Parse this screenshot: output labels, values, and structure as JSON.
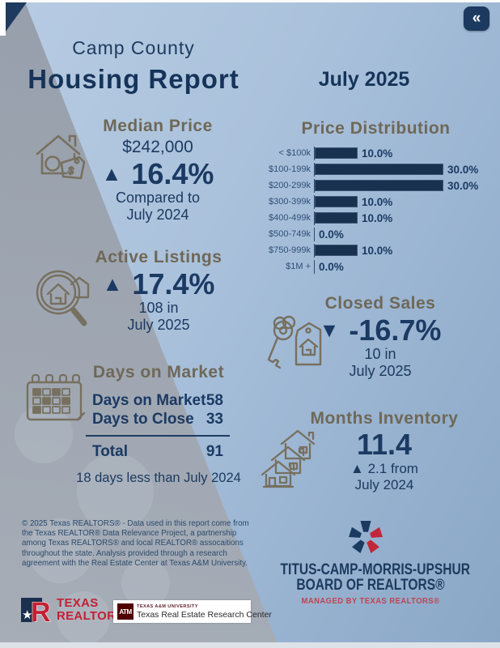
{
  "colors": {
    "navy": "#17345a",
    "bar_navy": "#17314f",
    "olive_title": "#6f6857",
    "brand_red": "#c32033",
    "tcmu_red": "#bf4350",
    "maroon": "#500000"
  },
  "window": {
    "collapse_label": "«"
  },
  "header": {
    "county": "Camp County",
    "title": "Housing Report",
    "period": "July 2025"
  },
  "median_price": {
    "title": "Median Price",
    "value": "$242,000",
    "arrow": "▲",
    "change": "16.4%",
    "compare_line1": "Compared to",
    "compare_line2": "July 2024"
  },
  "chart_data": {
    "type": "bar",
    "orientation": "horizontal",
    "title": "Price Distribution",
    "categories": [
      "< $100k",
      "$100-199k",
      "$200-299k",
      "$300-399k",
      "$400-499k",
      "$500-749k",
      "$750-999k",
      "$1M +"
    ],
    "values": [
      10,
      30,
      30,
      10,
      10,
      0,
      10,
      0
    ],
    "value_labels": [
      "10.0%",
      "30.0%",
      "30.0%",
      "10.0%",
      "10.0%",
      "0.0%",
      "10.0%",
      "0.0%"
    ],
    "xlabel": "",
    "ylabel": "",
    "xlim": [
      0,
      33
    ],
    "unit": "%",
    "grid": false,
    "legend": false
  },
  "active_listings": {
    "title": "Active Listings",
    "arrow": "▲",
    "change": "17.4%",
    "count_line1": "108 in",
    "count_line2": "July 2025"
  },
  "closed_sales": {
    "title": "Closed Sales",
    "arrow": "▼",
    "change": "-16.7%",
    "count_line1": "10 in",
    "count_line2": "July 2025"
  },
  "days_on_market": {
    "title": "Days on Market",
    "rows": [
      {
        "label": "Days on Market",
        "value": "58"
      },
      {
        "label": "Days to Close",
        "value": "33"
      }
    ],
    "total_label": "Total",
    "total_value": "91",
    "note": "18 days less than July 2024"
  },
  "months_inventory": {
    "title": "Months Inventory",
    "value": "11.4",
    "change_line1": "▲ 2.1 from",
    "change_line2": "July 2024"
  },
  "disclaimer": "© 2025 Texas REALTORS® - Data used in this report come from the Texas REALTOR® Data Relevance Project, a partnership among Texas REALTORS® and local REALTOR® assocaitions throughout the state. Analysis provided through a research agreement with the Real Estate Center at Texas A&M University.",
  "tcmu_logo": {
    "line1": "TITUS-CAMP-MORRIS-UPSHUR",
    "line2": "BOARD OF REALTORS®",
    "line3": "MANAGED BY TEXAS REALTORS®"
  },
  "texas_realtors_logo": {
    "mark_letter": "R",
    "star": "★",
    "line1": "TEXAS",
    "line2": "REALTORS®"
  },
  "am_logo": {
    "mark": "ATM",
    "line1": "TEXAS A&M UNIVERSITY",
    "line2": "Texas Real Estate Research Center"
  }
}
